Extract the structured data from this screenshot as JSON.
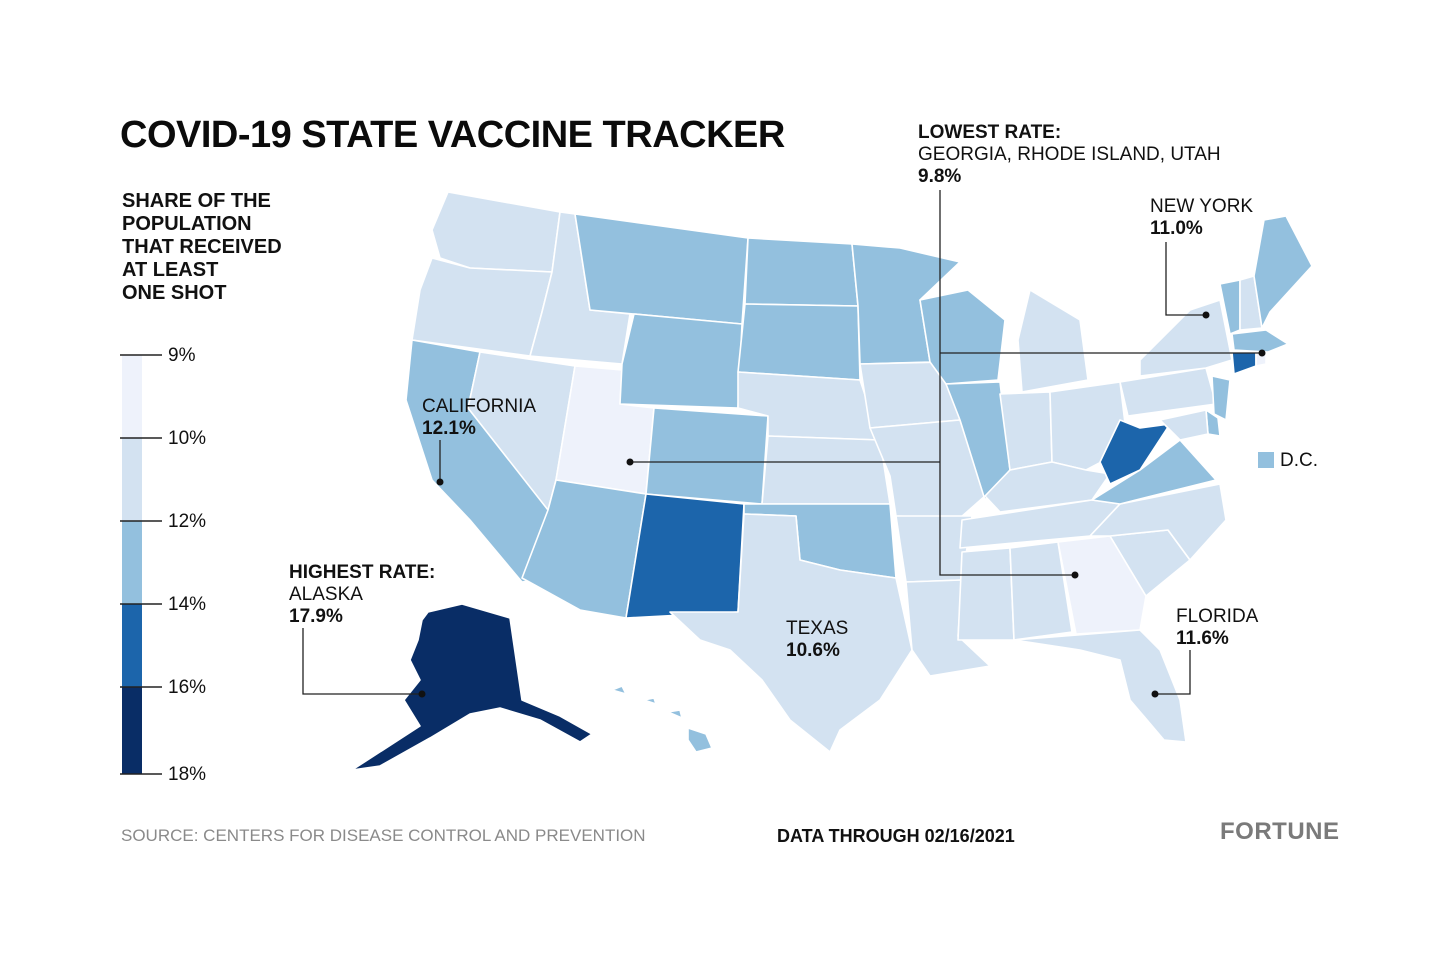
{
  "title": "COVID-19 STATE VACCINE TRACKER",
  "legend": {
    "title_lines": [
      "SHARE OF THE",
      "POPULATION",
      "THAT RECEIVED",
      "AT LEAST",
      "ONE SHOT"
    ],
    "ticks": [
      "9%",
      "10%",
      "12%",
      "14%",
      "16%",
      "18%"
    ],
    "bins": [
      {
        "from": 9,
        "to": 10,
        "color": "#eef2fb"
      },
      {
        "from": 10,
        "to": 12,
        "color": "#d3e2f1"
      },
      {
        "from": 12,
        "to": 14,
        "color": "#93c0de"
      },
      {
        "from": 14,
        "to": 16,
        "color": "#1c65ab"
      },
      {
        "from": 16,
        "to": 18,
        "color": "#092d66"
      }
    ]
  },
  "callouts": {
    "lowest": {
      "heading": "LOWEST RATE:",
      "states": "GEORGIA, RHODE ISLAND, UTAH",
      "value": "9.8%"
    },
    "highest": {
      "heading": "HIGHEST RATE:",
      "states": "ALASKA",
      "value": "17.9%"
    },
    "new_york": {
      "name": "NEW YORK",
      "value": "11.0%"
    },
    "california": {
      "name": "CALIFORNIA",
      "value": "12.1%"
    },
    "texas": {
      "name": "TEXAS",
      "value": "10.6%"
    },
    "florida": {
      "name": "FLORIDA",
      "value": "11.6%"
    },
    "dc": {
      "name": "D.C."
    }
  },
  "state_fill_bins": {
    "AK": "16-18",
    "NM": "14-16",
    "WV": "14-16",
    "CT": "14-16",
    "GA": "9-10",
    "UT": "9-10",
    "RI": "9-10",
    "CA": "12-14",
    "AZ": "12-14",
    "MT": "12-14",
    "WY": "12-14",
    "CO": "12-14",
    "ND": "12-14",
    "SD": "12-14",
    "MN": "12-14",
    "WI": "12-14",
    "IL": "12-14",
    "OK": "12-14",
    "VA": "12-14",
    "NJ": "12-14",
    "ME": "12-14",
    "VT": "12-14",
    "MA": "12-14",
    "DC": "12-14",
    "DE": "12-14",
    "default": "10-12"
  },
  "footer": {
    "source": "SOURCE: CENTERS FOR DISEASE CONTROL AND PREVENTION",
    "date": "DATA THROUGH 02/16/2021",
    "brand": "FORTUNE"
  }
}
